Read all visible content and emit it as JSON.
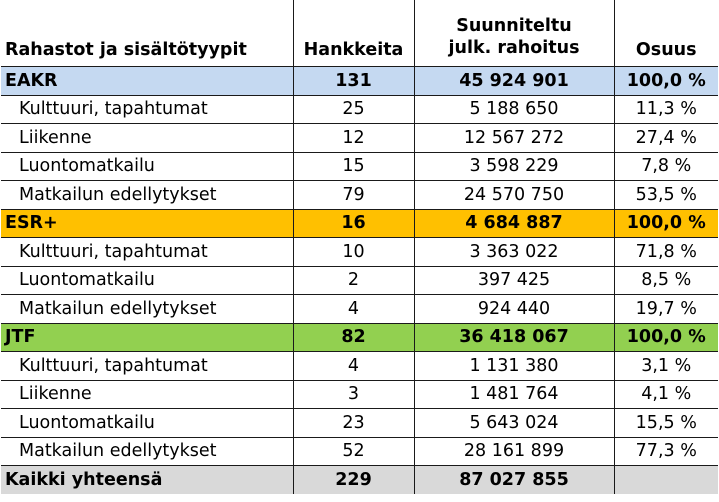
{
  "header": {
    "col1": "Rahastot ja sisältötyypit",
    "col2": "Hankkeita",
    "col3_line1": "Suunniteltu",
    "col3_line2": "julk. rahoitus",
    "col4": "Osuus"
  },
  "colors": {
    "EAKR": "#c5d9f1",
    "ESR+": "#ffc000",
    "JTF": "#92d050",
    "total": "#d9d9d9"
  },
  "groups": [
    {
      "name": "EAKR",
      "projects": "131",
      "funding": "45 924 901",
      "share": "100,0 %",
      "rows": [
        {
          "name": "Kulttuuri, tapahtumat",
          "projects": "25",
          "funding": "5 188 650",
          "share": "11,3 %"
        },
        {
          "name": "Liikenne",
          "projects": "12",
          "funding": "12 567 272",
          "share": "27,4 %"
        },
        {
          "name": "Luontomatkailu",
          "projects": "15",
          "funding": "3 598 229",
          "share": "7,8 %"
        },
        {
          "name": "Matkailun edellytykset",
          "projects": "79",
          "funding": "24 570 750",
          "share": "53,5 %"
        }
      ]
    },
    {
      "name": "ESR+",
      "projects": "16",
      "funding": "4 684 887",
      "share": "100,0 %",
      "rows": [
        {
          "name": "Kulttuuri, tapahtumat",
          "projects": "10",
          "funding": "3 363 022",
          "share": "71,8 %"
        },
        {
          "name": "Luontomatkailu",
          "projects": "2",
          "funding": "397 425",
          "share": "8,5 %"
        },
        {
          "name": "Matkailun edellytykset",
          "projects": "4",
          "funding": "924 440",
          "share": "19,7 %"
        }
      ]
    },
    {
      "name": "JTF",
      "projects": "82",
      "funding": "36 418 067",
      "share": "100,0 %",
      "rows": [
        {
          "name": "Kulttuuri, tapahtumat",
          "projects": "4",
          "funding": "1 131 380",
          "share": "3,1 %"
        },
        {
          "name": "Liikenne",
          "projects": "3",
          "funding": "1 481 764",
          "share": "4,1 %"
        },
        {
          "name": "Luontomatkailu",
          "projects": "23",
          "funding": "5 643 024",
          "share": "15,5 %"
        },
        {
          "name": "Matkailun edellytykset",
          "projects": "52",
          "funding": "28 161 899",
          "share": "77,3 %"
        }
      ]
    }
  ],
  "total": {
    "name": "Kaikki yhteensä",
    "projects": "229",
    "funding": "87 027 855",
    "share": ""
  }
}
